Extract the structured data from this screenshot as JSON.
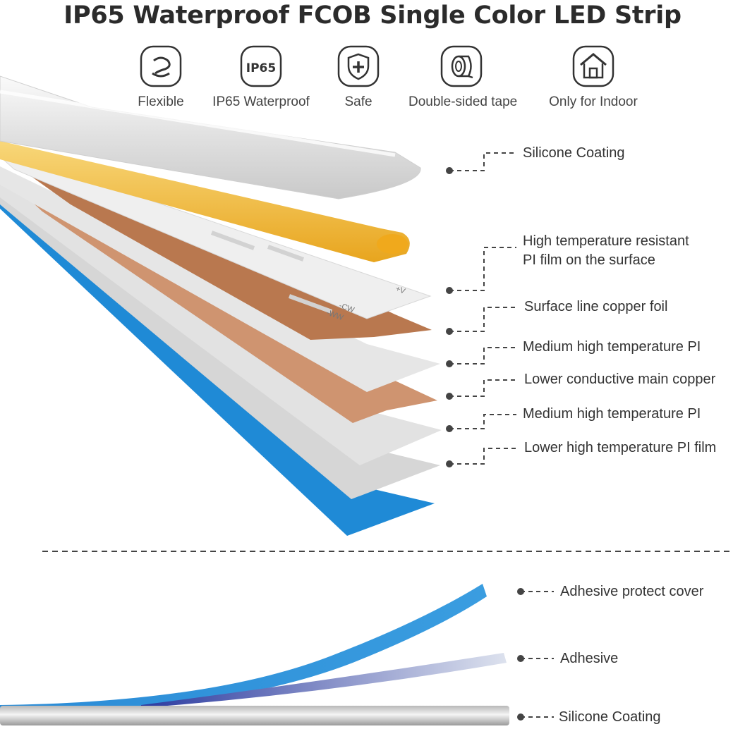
{
  "title": "IP65 Waterproof FCOB Single Color LED Strip",
  "features": [
    {
      "icon": "flexible-icon",
      "label": "Flexible"
    },
    {
      "icon": "ip65-icon",
      "icon_text": "IP65",
      "label": "IP65 Waterproof"
    },
    {
      "icon": "shield-plus-icon",
      "label": "Safe"
    },
    {
      "icon": "tape-roll-icon",
      "label": "Double-sided tape"
    },
    {
      "icon": "house-icon",
      "label": "Only for Indoor"
    }
  ],
  "layers": [
    {
      "label": "Silicone Coating"
    },
    {
      "label_line1": "High temperature resistant",
      "label_line2": "PI film on the surface"
    },
    {
      "label": "Surface line copper foil"
    },
    {
      "label": "Medium high temperature PI"
    },
    {
      "label": "Lower conductive main copper"
    },
    {
      "label": "Medium high temperature PI"
    },
    {
      "label": "Lower high temperature PI film"
    }
  ],
  "bottom_layers": [
    {
      "label": "Adhesive protect cover"
    },
    {
      "label": "Adhesive"
    },
    {
      "label": "Silicone Coating"
    }
  ],
  "pcb_marks": [
    "+V",
    "-CW",
    "-WW"
  ],
  "colors": {
    "blue": "#1f8ad6",
    "copper": "#c88a64",
    "yellow": "#f2b92e",
    "silicone": "#e9e9e9",
    "pi_film": "#dcdcdc",
    "text": "#333333"
  }
}
